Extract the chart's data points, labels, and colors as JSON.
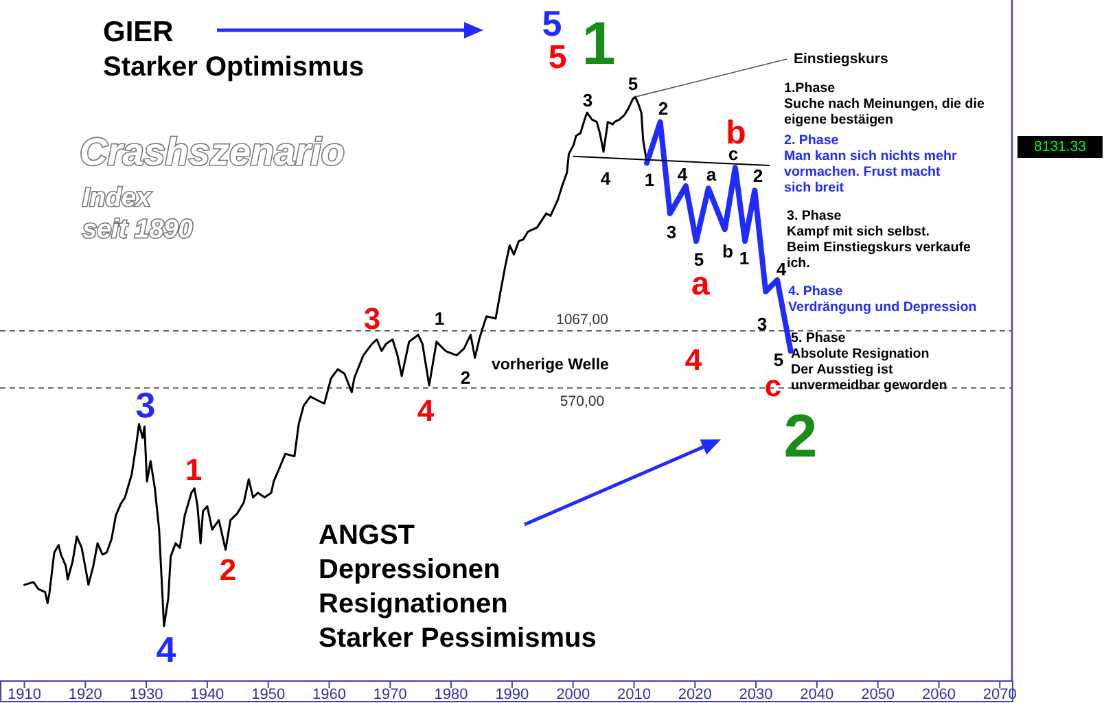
{
  "chart_data": {
    "type": "line",
    "log": true,
    "tick_labels": "x",
    "xlim": [
      1906,
      2072
    ],
    "xticks": [
      1910,
      1920,
      1930,
      1940,
      1950,
      1960,
      1970,
      1980,
      1990,
      2000,
      2010,
      2020,
      2030,
      2040,
      2050,
      2060,
      2070
    ],
    "ylim": [
      23,
      40000
    ],
    "series": [
      {
        "color": "#000000",
        "x": [
          1910.0,
          1911.5,
          1912.3,
          1913.4,
          1913.8,
          1914.1,
          1914.9,
          1915.6,
          1916.0,
          1916.8,
          1917.1,
          1917.9,
          1918.6,
          1919.4,
          1920.1,
          1920.5,
          1921.3,
          1922.0,
          1922.8,
          1923.5,
          1924.3,
          1925.0,
          1925.8,
          1926.5,
          1927.6,
          1928.4,
          1928.8,
          1929.4,
          1929.7,
          1930.1,
          1930.7,
          1931.4,
          1932.1,
          1932.9,
          1933.6,
          1934.0,
          1934.8,
          1935.5,
          1936.3,
          1937.4,
          1937.9,
          1938.4,
          1938.9,
          1939.3,
          1940.0,
          1940.8,
          1941.9,
          1943.0,
          1943.8,
          1944.9,
          1946.0,
          1946.8,
          1947.5,
          1948.3,
          1949.4,
          1950.5,
          1950.9,
          1951.7,
          1952.8,
          1954.3,
          1955.0,
          1955.8,
          1956.9,
          1958.4,
          1959.2,
          1960.3,
          1961.4,
          1962.5,
          1963.7,
          1964.1,
          1965.6,
          1967.0,
          1967.8,
          1968.6,
          1969.3,
          1970.4,
          1971.2,
          1971.9,
          1973.1,
          1974.6,
          1975.3,
          1976.4,
          1977.6,
          1979.1,
          1980.9,
          1982.1,
          1983.2,
          1983.9,
          1984.7,
          1985.8,
          1987.3,
          1988.1,
          1988.8,
          1989.6,
          1990.3,
          1991.1,
          1991.8,
          1992.6,
          1994.1,
          1995.6,
          1996.3,
          1997.5,
          1998.2,
          1999.0,
          1999.3,
          2000.1,
          2000.5,
          2001.2,
          2002.0,
          2002.3,
          2003.1,
          2003.9,
          2004.4,
          2005.0,
          2005.7,
          2006.5,
          2006.8,
          2007.6,
          2008.4,
          2009.1,
          2009.8,
          2010.2,
          2010.7,
          2011.2,
          2011.5,
          2012.0,
          2012.1
        ],
        "values": [
          66,
          68,
          63,
          61,
          54,
          60,
          94,
          102,
          92,
          81,
          70,
          85,
          112,
          99,
          77,
          66,
          81,
          104,
          92,
          94,
          109,
          141,
          160,
          172,
          221,
          314,
          384,
          330,
          374,
          205,
          256,
          190,
          121,
          42,
          57,
          90,
          104,
          99,
          141,
          181,
          190,
          156,
          104,
          148,
          156,
          121,
          134,
          97,
          134,
          144,
          163,
          210,
          172,
          181,
          172,
          181,
          205,
          232,
          277,
          270,
          384,
          469,
          519,
          493,
          481,
          634,
          700,
          667,
          545,
          634,
          815,
          923,
          970,
          855,
          923,
          970,
          815,
          650,
          946,
          1021,
          923,
          587,
          946,
          855,
          815,
          877,
          1021,
          794,
          995,
          1250,
          1220,
          1640,
          2110,
          2720,
          2460,
          2850,
          2900,
          3160,
          3310,
          3860,
          3760,
          4480,
          5210,
          6050,
          7400,
          8190,
          9040,
          9290,
          11040,
          11640,
          10790,
          10510,
          9290,
          7590,
          10510,
          10250,
          10510,
          10790,
          11320,
          12220,
          13520,
          13840,
          12850,
          11640,
          8610,
          7030,
          6700
        ]
      },
      {
        "color": "#1f2bff",
        "x": [
          2012.1,
          2014.3,
          2015.9,
          2018.5,
          2020.2,
          2022.2,
          2024.9,
          2026.6,
          2028.2,
          2029.8,
          2031.6,
          2033.5,
          2035.7
        ],
        "values": [
          6700,
          10510,
          3860,
          5210,
          2850,
          5080,
          3240,
          6370,
          2850,
          4960,
          1640,
          1860,
          855
        ]
      },
      {
        "color": "#000000",
        "x": [
          2000.1,
          2032.2
        ],
        "values": [
          7210,
          6530
        ]
      }
    ],
    "ref_lines": [
      {
        "axis": "y",
        "value": 1067,
        "label": "1067,00",
        "color": "#555555",
        "line_style": "dashed"
      },
      {
        "axis": "y",
        "value": 570,
        "label": "570,00",
        "color": "#555555",
        "line_style": "dashed"
      }
    ],
    "annotations": [
      "GIER",
      "Starker Optimismus",
      "Crashszenario",
      "Index\nseit 1890",
      "1.Phase\nSuche nach Meinungen, die die\neigene bestäigen",
      "2. Phase\nMan kann sich nichts mehr\nvormachen. Frust macht\nsich breit",
      "3. Phase\nKampf mit sich selbst.\nBeim Einstiegskurs verkaufe\nich.",
      "4. Phase\nVerdrängung und Depression",
      "5. Phase\nAbsolute Resignation\nDer Ausstieg ist\nunvermeidbar geworden",
      "ANGST\nDepressionen\nResignationen\nStarker Pessimismus",
      "vorherige Welle",
      {
        "text": "Einstiegskurs",
        "x": 2010.2,
        "y": 13840
      },
      "8131.33",
      "5",
      "5",
      "1",
      "2",
      "3",
      "4",
      "1",
      "2",
      "3",
      "4",
      "1",
      "2",
      "3",
      "5",
      "4",
      "1",
      "2",
      "3",
      "4",
      "a",
      "5",
      "b",
      "c",
      "1",
      "2",
      "b",
      "a",
      "3",
      "4",
      "5",
      "c",
      "4"
    ]
  }
}
